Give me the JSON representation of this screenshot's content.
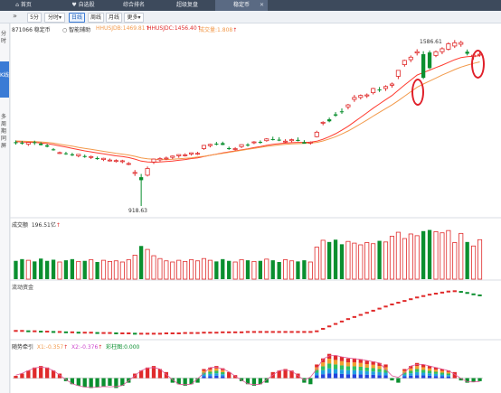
{
  "tabs": [
    {
      "label": "首页",
      "icon": "home-icon"
    },
    {
      "label": "自选股",
      "icon": "heart-icon"
    },
    {
      "label": "综合排名"
    },
    {
      "label": "超级复盘"
    },
    {
      "label": "稳定币"
    }
  ],
  "toolbar": {
    "expand_icon": "double-chevron-icon",
    "items": [
      "5分",
      "分时",
      "日线",
      "周线",
      "月线",
      "更多"
    ],
    "selected": "日线"
  },
  "sidebar": [
    "分时",
    "K线",
    "多周期同屏"
  ],
  "main": {
    "stock_label": "871066 稳定币",
    "assist": "智能辅助",
    "ma1": "HHUSJDB:1469.81",
    "ma2": "HHUSJDC:1456.40",
    "ma3": "成交量:1.808",
    "high_label": "1586.61",
    "low_label": "918.63"
  },
  "volume_panel": {
    "title": "成交额",
    "value": "196.51亿"
  },
  "flow_panel": {
    "title": "流动资金"
  },
  "osc_panel": {
    "title": "随势牵引",
    "x1": "X1:-0.357",
    "x2": "X2:-0.376",
    "bar": "彩柱图:0.000"
  },
  "colors": {
    "up": "#e02b2b",
    "down": "#0a8f2f",
    "ma_red": "#ff3a2e",
    "ma_orange": "#f2994a",
    "accent": "#3a7bd5"
  },
  "chart_data": [
    {
      "type": "candlestick",
      "series": [
        {
          "name": "K线",
          "values": [
            {
              "o": 1176,
              "h": 1183,
              "l": 1166,
              "c": 1172
            },
            {
              "o": 1174,
              "h": 1181,
              "l": 1166,
              "c": 1172
            },
            {
              "o": 1168,
              "h": 1175,
              "l": 1161,
              "c": 1175
            },
            {
              "o": 1176,
              "h": 1182,
              "l": 1165,
              "c": 1173
            },
            {
              "o": 1170,
              "h": 1176,
              "l": 1163,
              "c": 1164
            },
            {
              "o": 1163,
              "h": 1169,
              "l": 1155,
              "c": 1158
            },
            {
              "o": 1147,
              "h": 1152,
              "l": 1142,
              "c": 1144
            },
            {
              "o": 1133,
              "h": 1138,
              "l": 1128,
              "c": 1134
            },
            {
              "o": 1131,
              "h": 1137,
              "l": 1125,
              "c": 1128
            },
            {
              "o": 1127,
              "h": 1133,
              "l": 1120,
              "c": 1123
            },
            {
              "o": 1121,
              "h": 1128,
              "l": 1115,
              "c": 1127
            },
            {
              "o": 1120,
              "h": 1126,
              "l": 1113,
              "c": 1119
            },
            {
              "o": 1115,
              "h": 1122,
              "l": 1108,
              "c": 1118
            },
            {
              "o": 1112,
              "h": 1118,
              "l": 1105,
              "c": 1108
            },
            {
              "o": 1106,
              "h": 1113,
              "l": 1100,
              "c": 1111
            },
            {
              "o": 1104,
              "h": 1110,
              "l": 1098,
              "c": 1104
            },
            {
              "o": 1100,
              "h": 1107,
              "l": 1094,
              "c": 1102
            },
            {
              "o": 1098,
              "h": 1105,
              "l": 1091,
              "c": 1101
            },
            {
              "o": 1090,
              "h": 1096,
              "l": 1083,
              "c": 1090
            },
            {
              "o": 1052,
              "h": 1064,
              "l": 1040,
              "c": 1054
            },
            {
              "o": 1035,
              "h": 1048,
              "l": 919,
              "c": 1023
            },
            {
              "o": 1043,
              "h": 1078,
              "l": 1038,
              "c": 1070
            },
            {
              "o": 1096,
              "h": 1110,
              "l": 1088,
              "c": 1108
            },
            {
              "o": 1105,
              "h": 1115,
              "l": 1098,
              "c": 1110
            },
            {
              "o": 1110,
              "h": 1118,
              "l": 1104,
              "c": 1112
            },
            {
              "o": 1115,
              "h": 1122,
              "l": 1108,
              "c": 1120
            },
            {
              "o": 1121,
              "h": 1127,
              "l": 1113,
              "c": 1126
            },
            {
              "o": 1124,
              "h": 1131,
              "l": 1118,
              "c": 1125
            },
            {
              "o": 1128,
              "h": 1134,
              "l": 1122,
              "c": 1133
            },
            {
              "o": 1130,
              "h": 1137,
              "l": 1124,
              "c": 1131
            },
            {
              "o": 1150,
              "h": 1165,
              "l": 1145,
              "c": 1163
            },
            {
              "o": 1162,
              "h": 1170,
              "l": 1155,
              "c": 1167
            },
            {
              "o": 1170,
              "h": 1177,
              "l": 1163,
              "c": 1168
            },
            {
              "o": 1172,
              "h": 1178,
              "l": 1164,
              "c": 1165
            },
            {
              "o": 1152,
              "h": 1158,
              "l": 1145,
              "c": 1148
            },
            {
              "o": 1150,
              "h": 1156,
              "l": 1143,
              "c": 1150
            },
            {
              "o": 1158,
              "h": 1167,
              "l": 1152,
              "c": 1166
            },
            {
              "o": 1166,
              "h": 1172,
              "l": 1158,
              "c": 1163
            },
            {
              "o": 1174,
              "h": 1180,
              "l": 1168,
              "c": 1177
            },
            {
              "o": 1177,
              "h": 1183,
              "l": 1170,
              "c": 1175
            },
            {
              "o": 1182,
              "h": 1192,
              "l": 1178,
              "c": 1189
            },
            {
              "o": 1188,
              "h": 1198,
              "l": 1183,
              "c": 1186
            },
            {
              "o": 1186,
              "h": 1196,
              "l": 1180,
              "c": 1183
            },
            {
              "o": 1179,
              "h": 1188,
              "l": 1172,
              "c": 1180
            },
            {
              "o": 1182,
              "h": 1190,
              "l": 1176,
              "c": 1186
            },
            {
              "o": 1185,
              "h": 1195,
              "l": 1179,
              "c": 1181
            },
            {
              "o": 1176,
              "h": 1184,
              "l": 1170,
              "c": 1170
            },
            {
              "o": 1174,
              "h": 1179,
              "l": 1166,
              "c": 1176
            },
            {
              "o": 1198,
              "h": 1222,
              "l": 1195,
              "c": 1216
            },
            {
              "o": 1254,
              "h": 1260,
              "l": 1244,
              "c": 1256
            },
            {
              "o": 1268,
              "h": 1275,
              "l": 1256,
              "c": 1260
            },
            {
              "o": 1288,
              "h": 1297,
              "l": 1278,
              "c": 1283
            },
            {
              "o": 1300,
              "h": 1312,
              "l": 1290,
              "c": 1298
            },
            {
              "o": 1318,
              "h": 1330,
              "l": 1308,
              "c": 1326
            },
            {
              "o": 1348,
              "h": 1366,
              "l": 1338,
              "c": 1356
            },
            {
              "o": 1356,
              "h": 1368,
              "l": 1348,
              "c": 1364
            },
            {
              "o": 1362,
              "h": 1372,
              "l": 1354,
              "c": 1366
            },
            {
              "o": 1375,
              "h": 1395,
              "l": 1368,
              "c": 1392
            },
            {
              "o": 1388,
              "h": 1398,
              "l": 1378,
              "c": 1385
            },
            {
              "o": 1392,
              "h": 1405,
              "l": 1382,
              "c": 1400
            },
            {
              "o": 1405,
              "h": 1416,
              "l": 1395,
              "c": 1410
            },
            {
              "o": 1441,
              "h": 1466,
              "l": 1430,
              "c": 1465
            },
            {
              "o": 1488,
              "h": 1508,
              "l": 1480,
              "c": 1505
            },
            {
              "o": 1508,
              "h": 1525,
              "l": 1498,
              "c": 1518
            },
            {
              "o": 1535,
              "h": 1550,
              "l": 1525,
              "c": 1540
            },
            {
              "o": 1530,
              "h": 1542,
              "l": 1430,
              "c": 1435
            },
            {
              "o": 1537,
              "h": 1545,
              "l": 1470,
              "c": 1474
            },
            {
              "o": 1525,
              "h": 1545,
              "l": 1518,
              "c": 1540
            },
            {
              "o": 1540,
              "h": 1558,
              "l": 1530,
              "c": 1552
            },
            {
              "o": 1550,
              "h": 1578,
              "l": 1545,
              "c": 1572
            },
            {
              "o": 1563,
              "h": 1587,
              "l": 1555,
              "c": 1576
            },
            {
              "o": 1570,
              "h": 1584,
              "l": 1560,
              "c": 1577
            },
            {
              "o": 1540,
              "h": 1549,
              "l": 1525,
              "c": 1532
            },
            {
              "o": 1520,
              "h": 1532,
              "l": 1508,
              "c": 1526
            },
            {
              "o": 1530,
              "h": 1540,
              "l": 1520,
              "c": 1530
            }
          ]
        }
      ],
      "ma": [
        {
          "name": "MA1",
          "values": [
            1178,
            1177,
            1176,
            1175,
            1173,
            1170,
            1166,
            1161,
            1156,
            1151,
            1146,
            1141,
            1137,
            1133,
            1129,
            1125,
            1121,
            1118,
            1114,
            1108,
            1100,
            1096,
            1095,
            1096,
            1098,
            1100,
            1103,
            1106,
            1110,
            1113,
            1118,
            1123,
            1128,
            1133,
            1137,
            1141,
            1145,
            1149,
            1154,
            1158,
            1163,
            1167,
            1170,
            1172,
            1174,
            1175,
            1175,
            1176,
            1180,
            1188,
            1198,
            1210,
            1224,
            1240,
            1258,
            1276,
            1294,
            1313,
            1330,
            1347,
            1364,
            1385,
            1406,
            1426,
            1446,
            1456,
            1466,
            1476,
            1486,
            1497,
            1508,
            1516,
            1520,
            1522,
            1524
          ]
        },
        {
          "name": "MA2",
          "values": [
            1181,
            1180,
            1179,
            1178,
            1177,
            1175,
            1172,
            1168,
            1164,
            1160,
            1155,
            1151,
            1147,
            1143,
            1139,
            1135,
            1131,
            1128,
            1124,
            1119,
            1113,
            1109,
            1107,
            1106,
            1106,
            1107,
            1109,
            1111,
            1113,
            1116,
            1119,
            1123,
            1127,
            1131,
            1135,
            1139,
            1143,
            1147,
            1151,
            1155,
            1159,
            1162,
            1165,
            1167,
            1169,
            1170,
            1171,
            1172,
            1175,
            1181,
            1189,
            1198,
            1209,
            1221,
            1235,
            1250,
            1265,
            1281,
            1296,
            1311,
            1326,
            1343,
            1361,
            1379,
            1397,
            1410,
            1422,
            1434,
            1446,
            1457,
            1468,
            1478,
            1486,
            1493,
            1499
          ]
        }
      ],
      "annotations": [
        "1586.61",
        "918.63"
      ],
      "ylim": [
        890,
        1610
      ]
    },
    {
      "type": "bar",
      "title": "成交额",
      "values": [
        3.2,
        3.5,
        3.3,
        3.1,
        3.6,
        3.2,
        3.4,
        3.0,
        3.3,
        3.5,
        3.1,
        3.2,
        3.4,
        3.0,
        3.3,
        3.1,
        3.2,
        3.0,
        3.4,
        4.2,
        5.8,
        5.2,
        4.1,
        3.6,
        3.2,
        3.0,
        3.3,
        3.1,
        3.4,
        3.2,
        3.6,
        3.3,
        3.1,
        3.5,
        3.2,
        3.0,
        3.4,
        3.3,
        3.1,
        3.2,
        3.5,
        3.3,
        3.0,
        3.4,
        3.2,
        3.1,
        3.3,
        3.0,
        5.6,
        6.8,
        6.5,
        6.9,
        6.1,
        6.6,
        6.3,
        6.0,
        6.4,
        6.2,
        6.7,
        6.5,
        7.5,
        8.2,
        7.1,
        7.9,
        7.6,
        8.4,
        8.6,
        8.3,
        8.1,
        8.5,
        6.4,
        8.0,
        6.5,
        5.8,
        6.9
      ],
      "ylim": [
        0,
        9
      ]
    },
    {
      "type": "line",
      "title": "流动资金",
      "values": [
        0.0,
        0.0,
        -0.1,
        -0.1,
        -0.2,
        -0.2,
        -0.3,
        -0.3,
        -0.4,
        -0.4,
        -0.5,
        -0.5,
        -0.5,
        -0.6,
        -0.6,
        -0.6,
        -0.7,
        -0.7,
        -0.7,
        -0.8,
        -0.8,
        -0.8,
        -0.8,
        -0.8,
        -0.7,
        -0.7,
        -0.7,
        -0.6,
        -0.6,
        -0.6,
        -0.5,
        -0.5,
        -0.5,
        -0.4,
        -0.4,
        -0.4,
        -0.4,
        -0.3,
        -0.3,
        -0.3,
        -0.3,
        -0.3,
        -0.3,
        -0.3,
        -0.3,
        -0.3,
        -0.3,
        -0.3,
        -0.1,
        0.6,
        1.3,
        2.0,
        2.7,
        3.4,
        4.0,
        4.6,
        5.2,
        5.8,
        6.4,
        7.0,
        7.6,
        8.1,
        8.6,
        9.1,
        9.6,
        10.0,
        10.4,
        10.7,
        11.0,
        11.3,
        11.4,
        11.2,
        10.9,
        10.5,
        10.2
      ],
      "ylim": [
        -2,
        12
      ]
    },
    {
      "type": "bar",
      "title": "随势牵引",
      "values": [
        0.3,
        0.6,
        1.0,
        1.4,
        1.6,
        1.4,
        1.0,
        0.6,
        -0.4,
        -0.8,
        -1.0,
        -1.2,
        -1.3,
        -1.2,
        -1.1,
        -1.0,
        -1.3,
        -1.0,
        -0.6,
        0.6,
        1.0,
        1.4,
        1.6,
        1.2,
        0.8,
        -0.6,
        -0.8,
        -1.0,
        -0.8,
        -0.6,
        1.2,
        1.4,
        1.6,
        1.3,
        0.8,
        0.4,
        -0.4,
        -0.8,
        -1.0,
        -0.8,
        -0.6,
        0.8,
        1.0,
        1.2,
        1.0,
        0.6,
        -0.6,
        -0.8,
        1.8,
        2.6,
        3.2,
        3.0,
        2.8,
        2.6,
        2.6,
        2.5,
        2.3,
        2.2,
        2.0,
        1.8,
        -0.3,
        -0.6,
        1.2,
        1.6,
        2.0,
        1.8,
        1.6,
        1.4,
        1.2,
        1.0,
        0.8,
        -0.3,
        -0.6,
        -0.5,
        -0.4
      ],
      "stacked_tops": [
        0,
        0,
        0,
        0,
        0,
        0,
        0,
        0,
        0,
        0,
        0,
        0,
        0,
        0,
        0,
        0,
        0,
        0,
        0,
        0,
        0,
        0,
        0,
        0,
        0,
        0,
        0,
        0,
        0,
        0,
        1,
        1,
        1,
        1,
        0,
        0,
        0,
        0,
        0,
        0,
        0,
        0,
        0,
        0,
        0,
        0,
        0,
        0,
        1,
        1,
        1,
        1,
        1,
        1,
        1,
        1,
        1,
        1,
        1,
        1,
        0,
        0,
        1,
        1,
        1,
        1,
        1,
        1,
        1,
        1,
        0,
        0,
        0,
        0,
        0
      ],
      "x1": -0.357,
      "x2": -0.376,
      "ylim": [
        -1.6,
        3.4
      ]
    }
  ]
}
